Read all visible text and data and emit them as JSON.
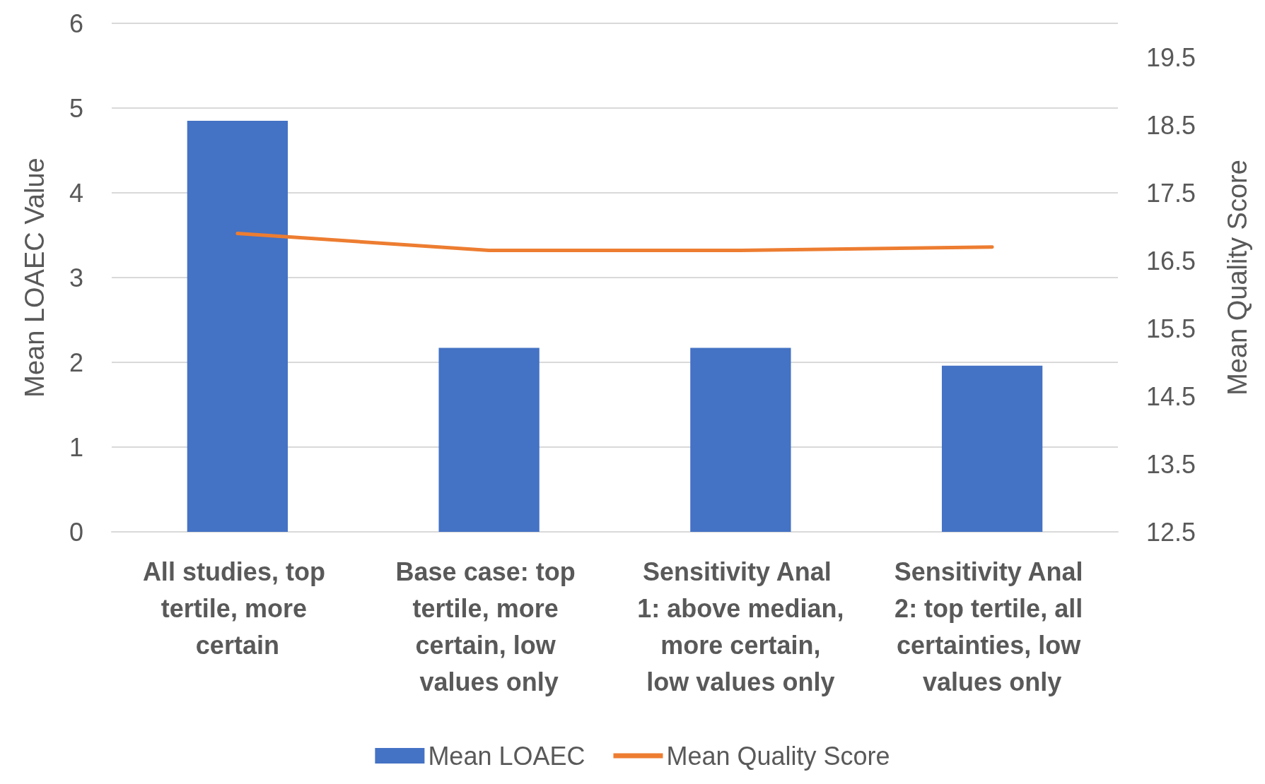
{
  "chart_data": {
    "type": "bar",
    "categories": [
      "All studies, top tertile, more certain",
      "Base case: top tertile, more certain, low values only",
      "Sensitivity Anal 1: above median, more certain, low values only",
      "Sensitivity Anal 2: top tertile, all certainties, low values only"
    ],
    "series": [
      {
        "name": "Mean LOAEC",
        "color": "#4472c4",
        "values": [
          4.85,
          2.17,
          2.17,
          1.96
        ]
      },
      {
        "name": "Mean Quality Score",
        "type": "line",
        "axis": "y2",
        "color": "#ed7d31",
        "values": [
          16.9,
          16.65,
          16.65,
          16.7
        ]
      }
    ],
    "ylabel": "Mean LOAEC Value",
    "y2label": "Mean Quality Score",
    "ylim": [
      0,
      6
    ],
    "yticks": [
      0,
      1,
      2,
      3,
      4,
      5,
      6
    ],
    "y2lim": [
      12.5,
      20
    ],
    "y2ticks": [
      12.5,
      13.5,
      14.5,
      15.5,
      16.5,
      17.5,
      18.5,
      19.5
    ],
    "grid": "y",
    "legend": "bottom",
    "marker": "none"
  }
}
